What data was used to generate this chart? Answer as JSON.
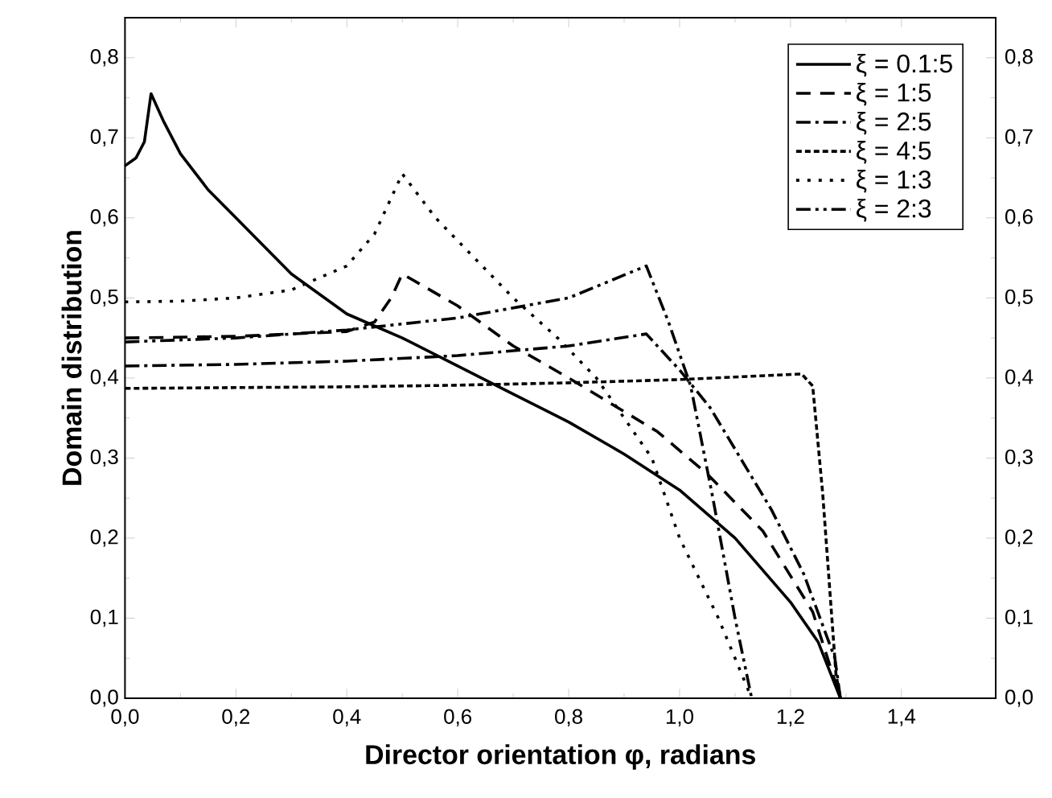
{
  "chart_data": {
    "type": "line",
    "xlabel": "Director orientation φ, radians",
    "ylabel": "Domain distribution",
    "xlim": [
      0,
      1.57
    ],
    "ylim": [
      0,
      0.85
    ],
    "y2lim": [
      0,
      0.85
    ],
    "xticks": [
      {
        "value": 0,
        "label": "0,0"
      },
      {
        "value": 0.2,
        "label": "0,2"
      },
      {
        "value": 0.4,
        "label": "0,4"
      },
      {
        "value": 0.6,
        "label": "0,6"
      },
      {
        "value": 0.8,
        "label": "0,8"
      },
      {
        "value": 1.0,
        "label": "1,0"
      },
      {
        "value": 1.2,
        "label": "1,2"
      },
      {
        "value": 1.4,
        "label": "1,4"
      }
    ],
    "yticks": [
      {
        "value": 0,
        "label": "0,0"
      },
      {
        "value": 0.1,
        "label": "0,1"
      },
      {
        "value": 0.2,
        "label": "0,2"
      },
      {
        "value": 0.3,
        "label": "0,3"
      },
      {
        "value": 0.4,
        "label": "0,4"
      },
      {
        "value": 0.5,
        "label": "0,5"
      },
      {
        "value": 0.6,
        "label": "0,6"
      },
      {
        "value": 0.7,
        "label": "0,7"
      },
      {
        "value": 0.8,
        "label": "0,8"
      }
    ],
    "y2ticks": [
      {
        "value": 0,
        "label": "0,0"
      },
      {
        "value": 0.1,
        "label": "0,1"
      },
      {
        "value": 0.2,
        "label": "0,2"
      },
      {
        "value": 0.3,
        "label": "0,3"
      },
      {
        "value": 0.4,
        "label": "0,4"
      },
      {
        "value": 0.5,
        "label": "0,5"
      },
      {
        "value": 0.6,
        "label": "0,6"
      },
      {
        "value": 0.7,
        "label": "0,7"
      },
      {
        "value": 0.8,
        "label": "0,8"
      }
    ],
    "legend": "top right",
    "grid": false,
    "marker": "none",
    "series": [
      {
        "name": "ξ = 0.1:5",
        "color": "#000000",
        "line_style": "solid",
        "x": [
          0,
          0.02,
          0.035,
          0.047,
          0.07,
          0.1,
          0.15,
          0.2,
          0.3,
          0.4,
          0.5,
          0.6,
          0.7,
          0.8,
          0.9,
          1.0,
          1.1,
          1.2,
          1.25,
          1.29
        ],
        "values": [
          0.665,
          0.675,
          0.695,
          0.755,
          0.72,
          0.68,
          0.635,
          0.6,
          0.53,
          0.48,
          0.45,
          0.415,
          0.38,
          0.345,
          0.305,
          0.26,
          0.2,
          0.12,
          0.07,
          0.0
        ]
      },
      {
        "name": "ξ = 1:5",
        "color": "#000000",
        "line_style": "dashed",
        "x": [
          0,
          0.2,
          0.4,
          0.45,
          0.48,
          0.5,
          0.6,
          0.7,
          0.8,
          0.96,
          1.05,
          1.15,
          1.24,
          1.29
        ],
        "values": [
          0.45,
          0.452,
          0.458,
          0.47,
          0.5,
          0.53,
          0.49,
          0.44,
          0.4,
          0.333,
          0.28,
          0.209,
          0.108,
          0.0
        ]
      },
      {
        "name": "ξ = 2:5",
        "color": "#000000",
        "line_style": "dashdot",
        "x": [
          0,
          0.2,
          0.4,
          0.6,
          0.8,
          0.94,
          1.0,
          1.055,
          1.166,
          1.224,
          1.28,
          1.29
        ],
        "values": [
          0.415,
          0.417,
          0.421,
          0.428,
          0.44,
          0.455,
          0.41,
          0.363,
          0.235,
          0.155,
          0.05,
          0.0
        ]
      },
      {
        "name": "ξ = 4:5",
        "color": "#000000",
        "line_style": "short dashed",
        "x": [
          0,
          0.2,
          0.4,
          0.6,
          0.8,
          1.0,
          1.22,
          1.24,
          1.258,
          1.282,
          1.29
        ],
        "values": [
          0.387,
          0.388,
          0.389,
          0.391,
          0.394,
          0.398,
          0.405,
          0.39,
          0.256,
          0.03,
          0.0
        ]
      },
      {
        "name": "ξ = 1:3",
        "color": "#000000",
        "line_style": "dotted",
        "x": [
          0,
          0.1,
          0.2,
          0.3,
          0.4,
          0.45,
          0.5,
          0.56,
          0.63,
          0.7,
          0.78,
          0.85,
          0.95,
          1.0,
          1.07,
          1.13
        ],
        "values": [
          0.495,
          0.496,
          0.5,
          0.51,
          0.54,
          0.58,
          0.655,
          0.6,
          0.55,
          0.5,
          0.45,
          0.4,
          0.3,
          0.2,
          0.1,
          0.0
        ]
      },
      {
        "name": "ξ = 2:3",
        "color": "#000000",
        "line_style": "dashdotdot",
        "x": [
          0,
          0.2,
          0.4,
          0.6,
          0.8,
          0.94,
          0.98,
          1.02,
          1.06,
          1.1,
          1.13
        ],
        "values": [
          0.445,
          0.45,
          0.46,
          0.475,
          0.5,
          0.54,
          0.47,
          0.39,
          0.25,
          0.1,
          0.0
        ]
      }
    ]
  }
}
